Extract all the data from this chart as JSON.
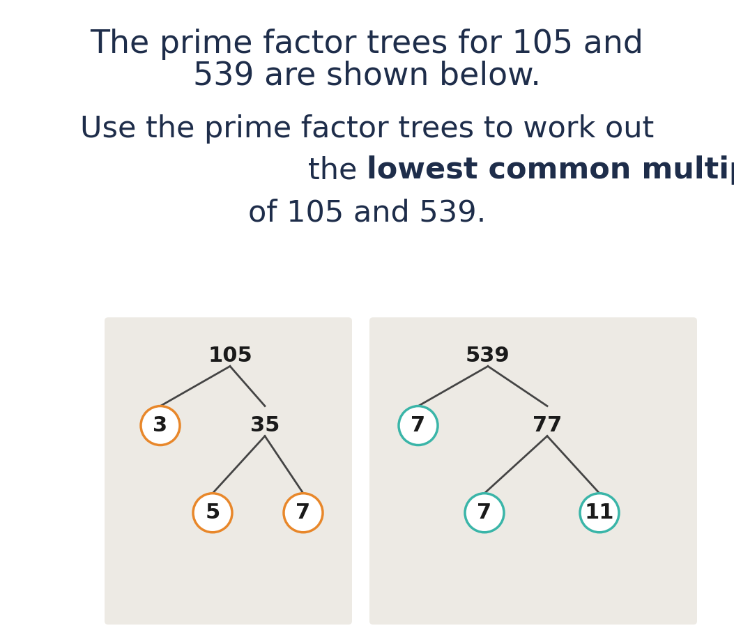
{
  "bg_color": "#ffffff",
  "box_color": "#edeae4",
  "text_color": "#1e2d4a",
  "orange_color": "#e8872a",
  "teal_color": "#3ab5a8",
  "line_color": "#444444",
  "title_line1": "The prime factor trees for 105 and",
  "title_line2": "539 are shown below.",
  "sub_line1": "Use the prime factor trees to work out",
  "sub_line2_normal": "the ",
  "sub_line2_bold": "lowest common multiple (LCM)",
  "sub_line3": "of 105 and 539.",
  "tree1_root": "105",
  "tree1_left_label": "3",
  "tree1_left_circled": true,
  "tree1_left_color": "orange",
  "tree1_right_label": "35",
  "tree1_rl_label": "5",
  "tree1_rl_color": "orange",
  "tree1_rr_label": "7",
  "tree1_rr_color": "orange",
  "tree2_root": "539",
  "tree2_left_label": "7",
  "tree2_left_circled": true,
  "tree2_left_color": "teal",
  "tree2_right_label": "77",
  "tree2_rl_label": "7",
  "tree2_rl_color": "teal",
  "tree2_rr_label": "11",
  "tree2_rr_color": "teal"
}
